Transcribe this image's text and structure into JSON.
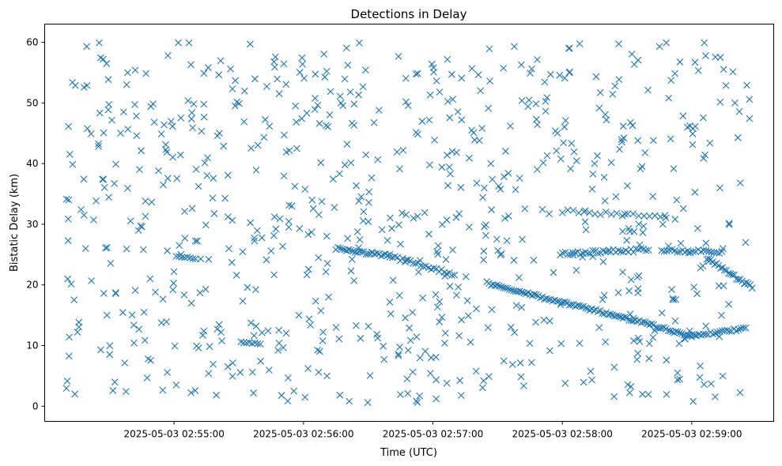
{
  "chart_data": {
    "type": "scatter",
    "title": "Detections in Delay",
    "xlabel": "Time (UTC)",
    "ylabel": "Bistatic Delay (km)",
    "x_is_time": true,
    "xlim": [
      "2025-05-03 02:54:00",
      "2025-05-03 02:59:38"
    ],
    "ylim": [
      -2.5,
      63
    ],
    "xticks": [
      "2025-05-03 02:55:00",
      "2025-05-03 02:56:00",
      "2025-05-03 02:57:00",
      "2025-05-03 02:58:00",
      "2025-05-03 02:59:00"
    ],
    "yticks": [
      0,
      10,
      20,
      30,
      40,
      50,
      60
    ],
    "grid": false,
    "marker": "x",
    "color": "#1f77b4",
    "time_range": [
      "2025-05-03 02:54:10",
      "2025-05-03 02:59:27"
    ],
    "series": [
      {
        "name": "",
        "points": [
          {
            "x": "2025-05-03 02:54:19",
            "y": 26.0
          },
          {
            "x": "2025-05-03 02:54:38",
            "y": 53.0
          },
          {
            "x": "2025-05-03 02:55:21",
            "y": 45.0
          },
          {
            "x": "2025-05-03 02:56:04",
            "y": 34.0
          },
          {
            "x": "2025-05-03 02:54:26",
            "y": 9.3
          },
          {
            "x": "2025-05-03 02:54:48",
            "y": 7.8
          },
          {
            "x": "2025-05-03 02:55:12",
            "y": 18.7
          },
          {
            "x": "2025-05-03 02:55:47",
            "y": 57.6
          },
          {
            "x": "2025-05-03 02:56:22",
            "y": 22.3
          },
          {
            "x": "2025-05-03 02:56:51",
            "y": 31.0
          },
          {
            "x": "2025-05-03 02:57:09",
            "y": 42.0
          },
          {
            "x": "2025-05-03 02:57:26",
            "y": 4.9
          },
          {
            "x": "2025-05-03 02:57:48",
            "y": 47.3
          },
          {
            "x": "2025-05-03 02:58:20",
            "y": 10.6
          },
          {
            "x": "2025-05-03 02:58:53",
            "y": 34.0
          },
          {
            "x": "2025-05-03 02:59:20",
            "y": 50.0
          },
          {
            "x": "2025-05-03 02:54:33",
            "y": 39.9
          },
          {
            "x": "2025-05-03 02:55:05",
            "y": 27.7
          },
          {
            "x": "2025-05-03 02:55:38",
            "y": 13.2
          },
          {
            "x": "2025-05-03 02:56:17",
            "y": 51.1
          },
          {
            "x": "2025-05-03 02:56:44",
            "y": 8.6
          },
          {
            "x": "2025-05-03 02:57:16",
            "y": 17.4
          },
          {
            "x": "2025-05-03 02:57:41",
            "y": 56.3
          },
          {
            "x": "2025-05-03 02:58:11",
            "y": 29.1
          },
          {
            "x": "2025-05-03 02:58:35",
            "y": 43.8
          },
          {
            "x": "2025-05-03 02:59:09",
            "y": 3.7
          },
          {
            "x": "2025-05-03 02:54:14",
            "y": 2.0
          },
          {
            "x": "2025-05-03 02:54:55",
            "y": 36.5
          },
          {
            "x": "2025-05-03 02:55:29",
            "y": 21.6
          },
          {
            "x": "2025-05-03 02:56:07",
            "y": 5.6
          },
          {
            "x": "2025-05-03 02:56:35",
            "y": 48.8
          },
          {
            "x": "2025-05-03 02:57:03",
            "y": 13.9
          },
          {
            "x": "2025-05-03 02:57:35",
            "y": 38.4
          },
          {
            "x": "2025-05-03 02:58:03",
            "y": 59.0
          },
          {
            "x": "2025-05-03 02:58:28",
            "y": 22.1
          },
          {
            "x": "2025-05-03 02:58:59",
            "y": 12.4
          },
          {
            "x": "2025-05-03 02:59:25",
            "y": 27.0
          },
          {
            "x": "2025-05-03 02:54:42",
            "y": 19.1
          },
          {
            "x": "2025-05-03 02:55:16",
            "y": 5.4
          },
          {
            "x": "2025-05-03 02:55:52",
            "y": 41.9
          }
        ]
      }
    ]
  }
}
